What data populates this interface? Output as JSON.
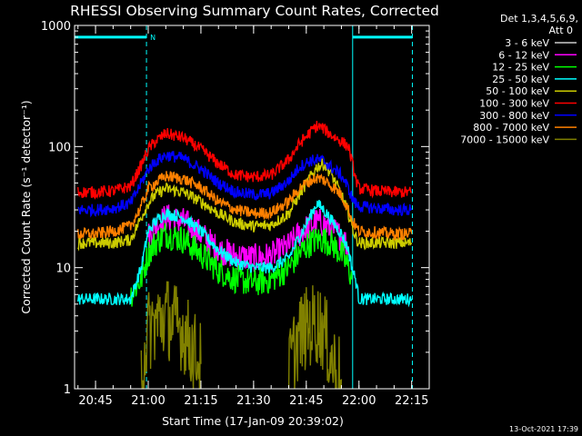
{
  "chart_data": {
    "type": "line",
    "title": "RHESSI Observing Summary Count Rates, Corrected",
    "xlabel": "Start Time (17-Jan-09 20:39:02)",
    "ylabel": "Corrected Count Rate (s⁻¹ detector⁻¹)",
    "x_ticks": [
      "20:45",
      "21:00",
      "21:15",
      "21:30",
      "21:45",
      "22:00",
      "22:15"
    ],
    "x_tick_minutes": [
      45,
      60,
      75,
      90,
      105,
      120,
      135
    ],
    "x_range_minutes": [
      39.03,
      140
    ],
    "y_scale": "log",
    "ylim": [
      1,
      1000
    ],
    "y_ticks": [
      1,
      10,
      100,
      1000
    ],
    "y_tick_labels": [
      "1",
      "10",
      "100",
      "1000"
    ],
    "legend_position": "top-right",
    "legend_header": [
      "Det 1,3,4,5,6,9,",
      "Att 0"
    ],
    "footer_date": "13-Oct-2021 17:39",
    "flag_marker": "N",
    "dashed_markers_minutes": [
      59.5,
      135.2
    ],
    "solid_marker_minutes": 118.2,
    "flag_bar": {
      "value": 800,
      "segments": [
        [
          39.03,
          59.5
        ],
        [
          118.2,
          135.2
        ]
      ]
    },
    "x_minutes": [
      40,
      45,
      50,
      55,
      58,
      60,
      62,
      65,
      70,
      75,
      80,
      85,
      90,
      95,
      100,
      103,
      106,
      108,
      110,
      112,
      115,
      117,
      118,
      119,
      120,
      125,
      130,
      135
    ],
    "series": [
      {
        "name": "3 - 6 keV",
        "color": "#000000",
        "values": [
          null,
          null,
          null,
          5,
          7,
          11,
          13,
          15.5,
          14,
          10,
          6.5,
          5,
          4.8,
          5,
          7,
          10,
          12,
          13,
          13,
          12,
          9,
          7,
          null,
          null,
          null,
          null,
          null,
          null
        ]
      },
      {
        "name": "6 - 12 keV",
        "color": "#ff00ff",
        "values": [
          null,
          null,
          null,
          null,
          null,
          18,
          22,
          26,
          24,
          19,
          14,
          12.5,
          12,
          12.5,
          15,
          19,
          22,
          24,
          23,
          21,
          18,
          15,
          null,
          null,
          null,
          null,
          null,
          null
        ]
      },
      {
        "name": "12 - 25 keV",
        "color": "#00ff00",
        "values": [
          null,
          null,
          null,
          6,
          8,
          13,
          16,
          19,
          17,
          13,
          9.5,
          8,
          7.5,
          8,
          10,
          13,
          16,
          17,
          17,
          16,
          13,
          10,
          8,
          null,
          null,
          null,
          null,
          null
        ]
      },
      {
        "name": "25 - 50 keV",
        "color": "#00ffff",
        "values": [
          5.5,
          5.5,
          5.5,
          5.5,
          10,
          20,
          24,
          28,
          26,
          20,
          14,
          11,
          10,
          10,
          12,
          18,
          26,
          34,
          30,
          25,
          19,
          14,
          10,
          8,
          5.5,
          5.5,
          5.5,
          5.5
        ]
      },
      {
        "name": "50 - 100 keV",
        "color": "#cccc00",
        "values": [
          16,
          16,
          16,
          17,
          26,
          34,
          40,
          45,
          42,
          35,
          28,
          23.5,
          22,
          22.5,
          28,
          40,
          55,
          68,
          72,
          60,
          40,
          28,
          22,
          18,
          16,
          16,
          16,
          16
        ]
      },
      {
        "name": "100 - 300 keV",
        "color": "#ff0000",
        "values": [
          42,
          42,
          43,
          47,
          70,
          95,
          110,
          128,
          118,
          95,
          72,
          58,
          56,
          58,
          78,
          105,
          130,
          148,
          140,
          125,
          110,
          100,
          75,
          55,
          45,
          43,
          42,
          42
        ]
      },
      {
        "name": "300 - 800 keV",
        "color": "#0000ff",
        "values": [
          30,
          30,
          31,
          34,
          50,
          65,
          75,
          85,
          80,
          65,
          50,
          42,
          40,
          41,
          52,
          68,
          76,
          78,
          76,
          68,
          58,
          45,
          38,
          34,
          32,
          31,
          30,
          30
        ]
      },
      {
        "name": "800 - 7000 keV",
        "color": "#ff8000",
        "values": [
          19,
          19,
          20,
          22,
          32,
          45,
          50,
          57,
          54,
          46,
          35,
          30,
          28,
          28.5,
          35,
          45,
          52,
          55,
          53,
          48,
          40,
          30,
          25,
          22,
          20,
          19.5,
          19,
          19
        ]
      },
      {
        "name": "7000 - 15000 keV",
        "color": "#808000",
        "values": [
          null,
          null,
          null,
          null,
          1.5,
          3,
          3.5,
          4,
          3,
          1.6,
          null,
          null,
          null,
          null,
          1.5,
          2.8,
          3.3,
          3.5,
          3,
          1.8,
          1.2,
          null,
          null,
          null,
          null,
          null,
          null,
          null
        ]
      }
    ]
  }
}
